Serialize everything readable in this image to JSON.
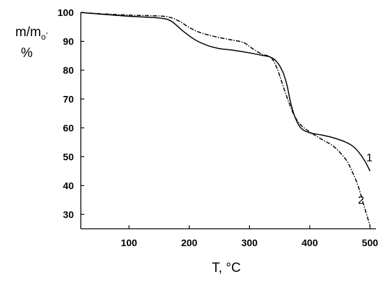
{
  "chart_data": {
    "type": "line",
    "xlabel": "T, °C",
    "ylabel_main": "m/m",
    "ylabel_sub": "o",
    "ylabel_suffix": ",",
    "ylabel_unit": "%",
    "xlim": [
      20,
      510
    ],
    "ylim": [
      25,
      100
    ],
    "x_ticks": [
      100,
      200,
      300,
      400,
      500
    ],
    "y_ticks": [
      30,
      40,
      50,
      60,
      70,
      80,
      90,
      100
    ],
    "grid": false,
    "series": [
      {
        "name": "1",
        "color": "#000000",
        "dash": "solid",
        "x": [
          20,
          50,
          100,
          150,
          170,
          190,
          210,
          230,
          250,
          270,
          300,
          320,
          335,
          345,
          355,
          362,
          368,
          375,
          385,
          400,
          420,
          440,
          460,
          475,
          490,
          500
        ],
        "y": [
          100,
          99.5,
          98.7,
          98.1,
          97,
          93.5,
          90.5,
          88.6,
          87.5,
          87,
          86,
          85.2,
          84.5,
          83,
          79.5,
          75,
          69,
          64,
          60,
          58.3,
          57.5,
          56.5,
          55,
          53,
          49,
          45
        ]
      },
      {
        "name": "2",
        "color": "#000000",
        "dash": "dashdot",
        "x": [
          20,
          50,
          100,
          150,
          170,
          185,
          200,
          215,
          230,
          250,
          270,
          290,
          305,
          320,
          335,
          345,
          355,
          365,
          375,
          385,
          400,
          420,
          440,
          460,
          470,
          480,
          490,
          500
        ],
        "y": [
          100,
          99.6,
          99.1,
          98.8,
          98.2,
          96.8,
          94.8,
          93.3,
          92.3,
          91.3,
          90.5,
          89.6,
          87.5,
          85.6,
          84.5,
          81,
          75,
          69,
          64,
          61,
          58.6,
          56,
          53.5,
          49,
          45,
          40,
          33,
          26
        ]
      }
    ]
  }
}
